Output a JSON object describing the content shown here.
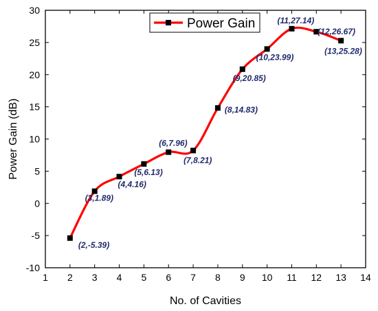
{
  "chart_data": {
    "type": "line",
    "xlabel": "No. of Cavities",
    "ylabel": "Power Gain (dB)",
    "xlim": [
      1,
      14
    ],
    "ylim": [
      -10,
      30
    ],
    "x_ticks": [
      1,
      2,
      3,
      4,
      5,
      6,
      7,
      8,
      9,
      10,
      11,
      12,
      13,
      14
    ],
    "y_ticks": [
      -10,
      -5,
      0,
      5,
      10,
      15,
      20,
      25,
      30
    ],
    "grid": false,
    "legend_position": "top-center",
    "series": [
      {
        "name": "Power Gain",
        "color": "#ff0000",
        "marker_color": "#000000",
        "x": [
          2,
          3,
          4,
          5,
          6,
          7,
          8,
          9,
          10,
          11,
          12,
          13
        ],
        "y": [
          -5.39,
          1.89,
          4.16,
          6.13,
          7.96,
          8.21,
          14.83,
          20.85,
          23.99,
          27.14,
          26.67,
          25.28
        ]
      }
    ],
    "data_labels": [
      "(2,-5.39)",
      "(3,1.89)",
      "(4,4.16)",
      "(5,6.13)",
      "(6,7.96)",
      "(7,8.21)",
      "(8,14.83)",
      "(9,20.85)",
      "(10,23.99)",
      "(11,27.14)",
      "(12,26.67)",
      "(13,25.28)"
    ],
    "data_label_color": "#1f2a6b"
  }
}
